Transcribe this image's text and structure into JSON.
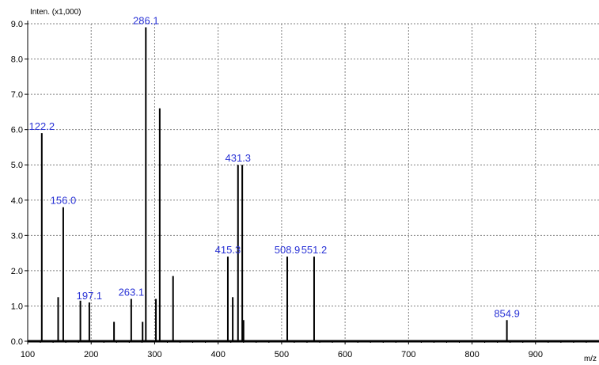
{
  "chart_data": {
    "type": "bar",
    "title": "",
    "ylabel": "Inten. (x1,000)",
    "xlabel": "m/z",
    "xlim": [
      100,
      1000
    ],
    "ylim": [
      0,
      9.0
    ],
    "grid": true,
    "x_ticks": [
      "100",
      "200",
      "300",
      "400",
      "500",
      "600",
      "700",
      "800",
      "900"
    ],
    "y_ticks": [
      "0.0",
      "1.0",
      "2.0",
      "3.0",
      "4.0",
      "5.0",
      "6.0",
      "7.0",
      "8.0",
      "9.0"
    ],
    "peaks": [
      {
        "x": 122.2,
        "y": 5.9,
        "label": "122.2"
      },
      {
        "x": 148.0,
        "y": 1.25,
        "label": ""
      },
      {
        "x": 156.0,
        "y": 3.8,
        "label": "156.0"
      },
      {
        "x": 183.0,
        "y": 1.15,
        "label": ""
      },
      {
        "x": 197.1,
        "y": 1.1,
        "label": "197.1"
      },
      {
        "x": 236.0,
        "y": 0.55,
        "label": ""
      },
      {
        "x": 263.1,
        "y": 1.2,
        "label": "263.1"
      },
      {
        "x": 281.0,
        "y": 0.55,
        "label": ""
      },
      {
        "x": 286.1,
        "y": 8.9,
        "label": "286.1"
      },
      {
        "x": 302.0,
        "y": 1.2,
        "label": ""
      },
      {
        "x": 308.0,
        "y": 6.6,
        "label": ""
      },
      {
        "x": 329.0,
        "y": 1.85,
        "label": ""
      },
      {
        "x": 415.3,
        "y": 2.4,
        "label": "415.3"
      },
      {
        "x": 423.0,
        "y": 1.25,
        "label": ""
      },
      {
        "x": 431.3,
        "y": 5.0,
        "label": "431.3"
      },
      {
        "x": 438.0,
        "y": 5.0,
        "label": ""
      },
      {
        "x": 440.0,
        "y": 0.6,
        "label": ""
      },
      {
        "x": 508.9,
        "y": 2.4,
        "label": "508.9"
      },
      {
        "x": 551.2,
        "y": 2.4,
        "label": "551.2"
      },
      {
        "x": 854.9,
        "y": 0.6,
        "label": "854.9"
      }
    ],
    "colors": {
      "peak": "#000000",
      "label": "#2a33d6",
      "grid": "#808080",
      "axis": "#000000"
    }
  }
}
